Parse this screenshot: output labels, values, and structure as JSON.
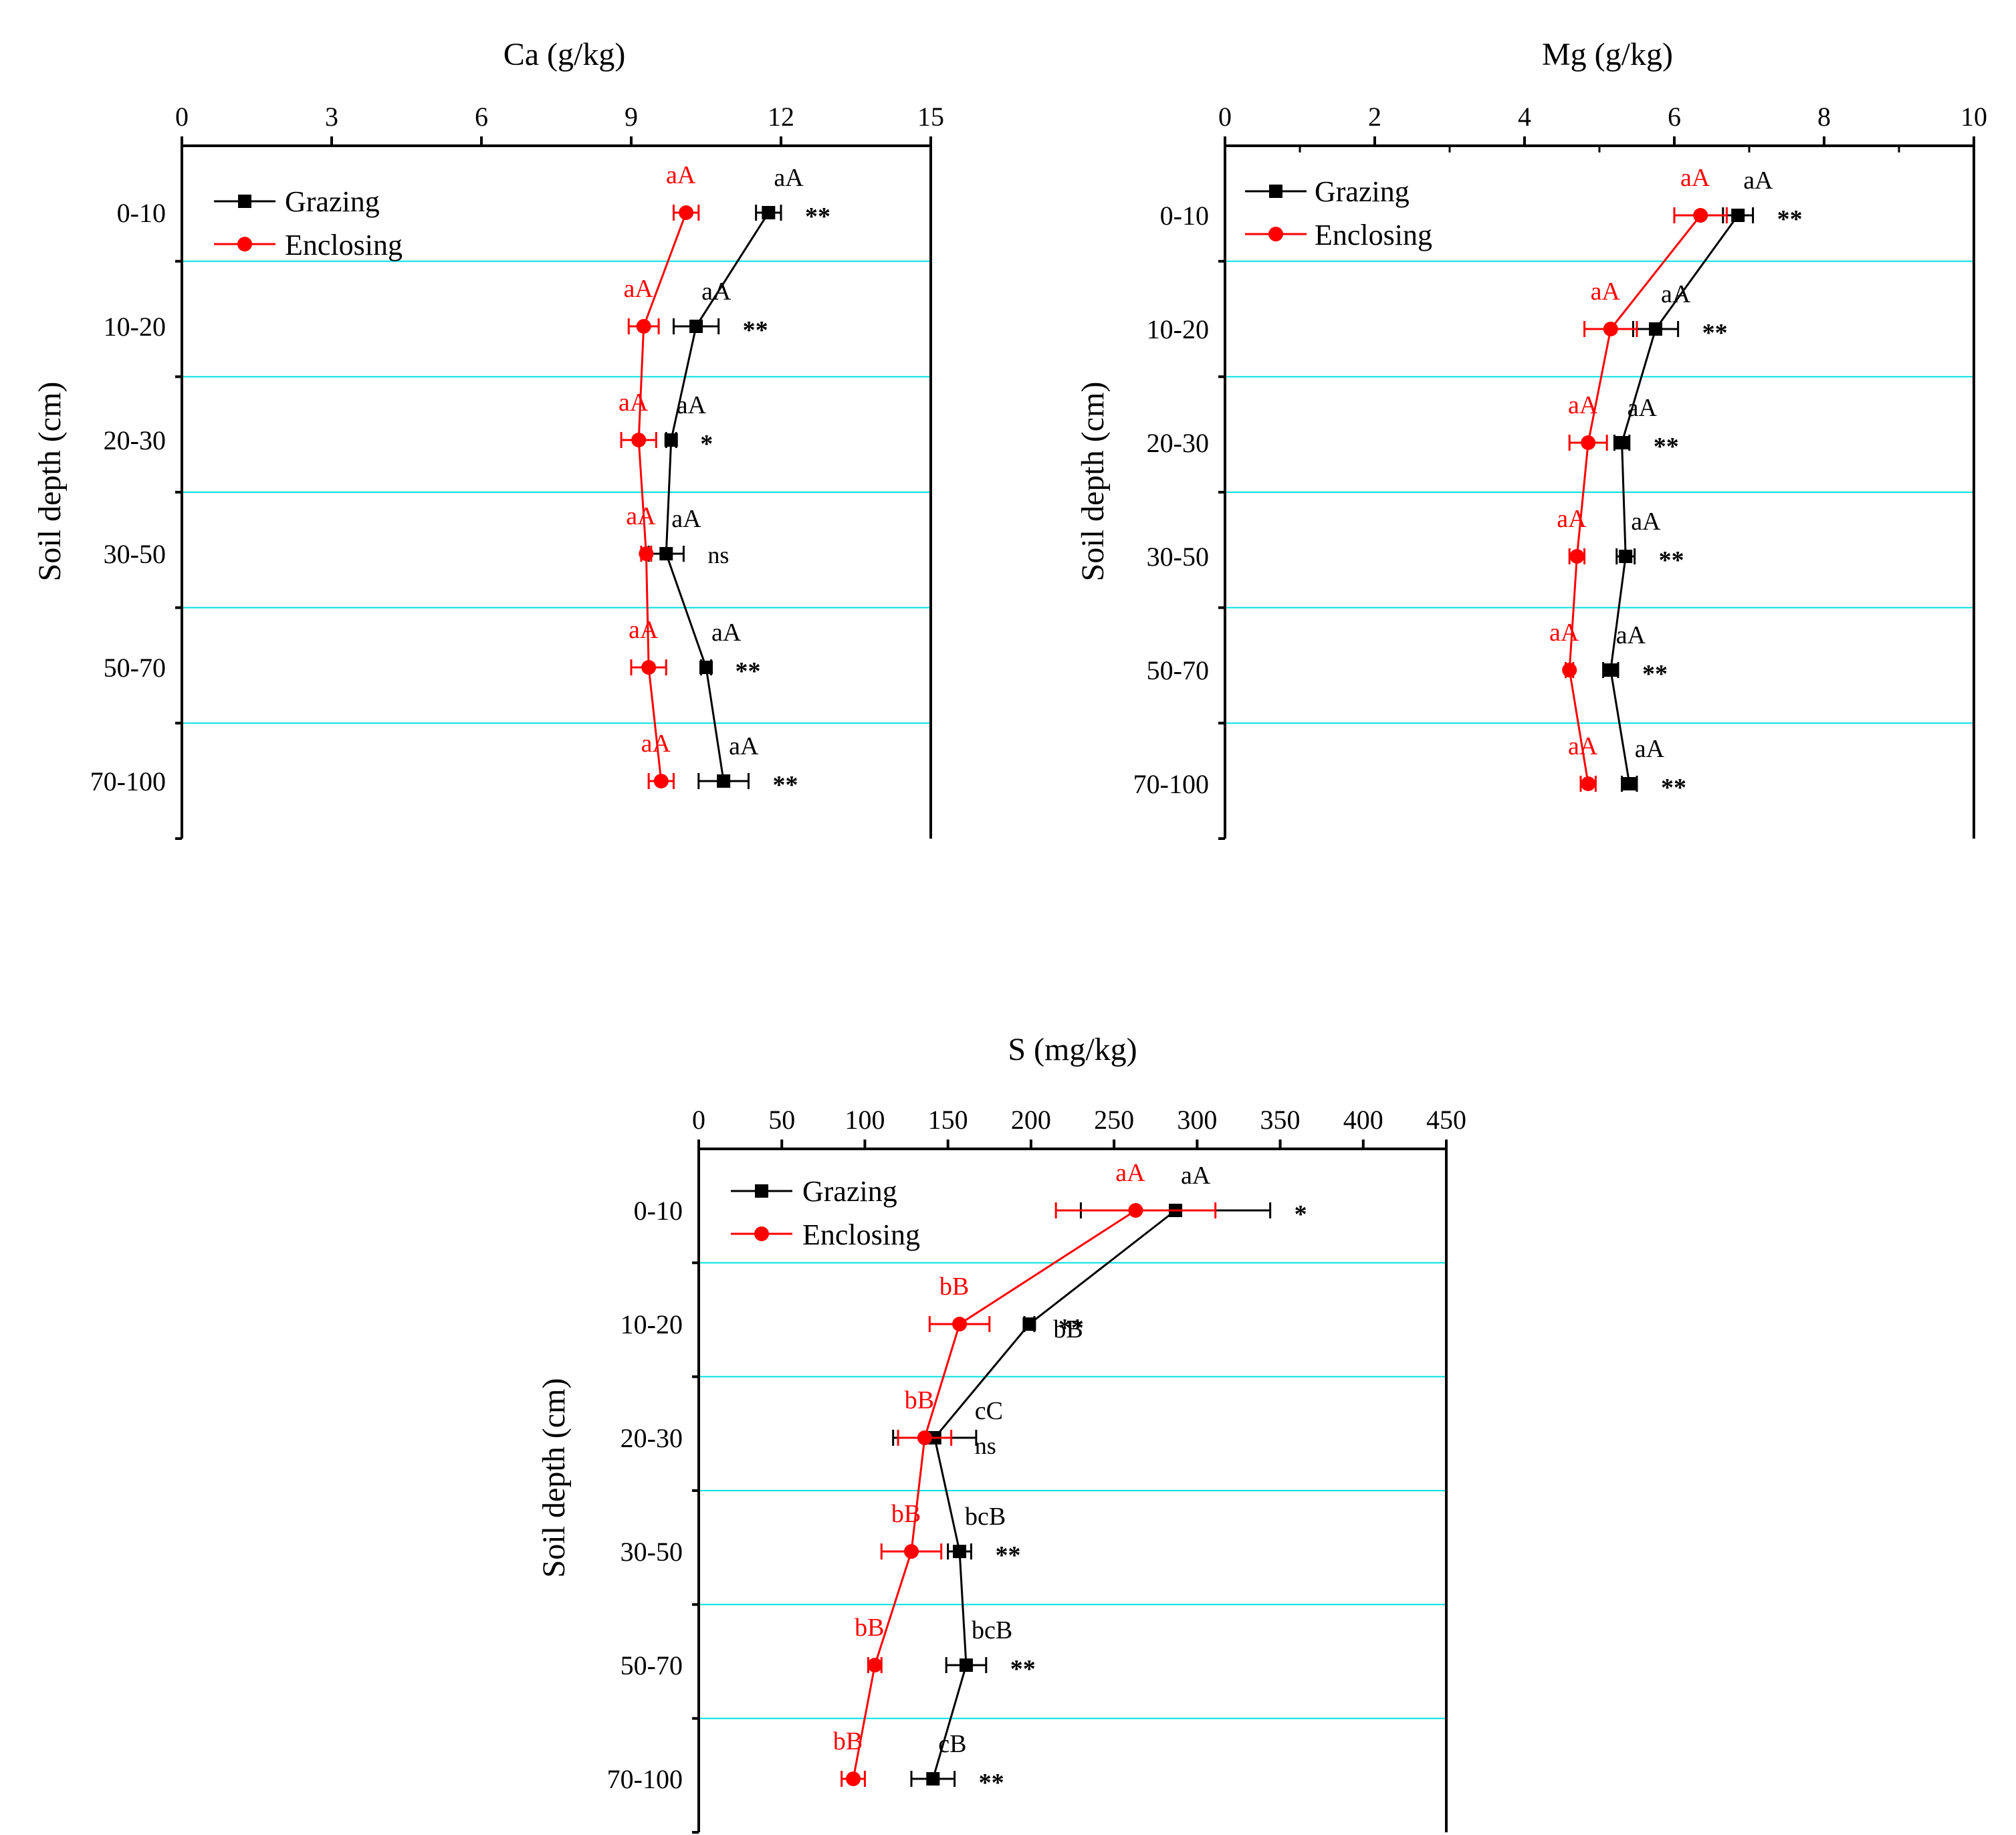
{
  "colors": {
    "grazing": "#000000",
    "enclosing": "#ff0000",
    "gridline": "#00e0e0",
    "axis": "#000000"
  },
  "chart_data": [
    {
      "type": "line",
      "id": "ca",
      "title": "Ca (g/kg)",
      "xlabel": "Ca (g/kg)",
      "ylabel": "Soil depth (cm)",
      "xlim": [
        0,
        15
      ],
      "xticks": [
        0,
        3,
        6,
        9,
        12,
        15
      ],
      "xtick_labels": [
        "0",
        "3",
        "6",
        "9",
        "12",
        "15"
      ],
      "minor_ticks": false,
      "categories": [
        "0-10",
        "10-20",
        "20-30",
        "30-50",
        "50-70",
        "70-100"
      ],
      "legend": {
        "position": "top-left",
        "entries": [
          "Grazing",
          "Enclosing"
        ]
      },
      "series": [
        {
          "name": "Grazing",
          "marker": "square",
          "values": [
            11.75,
            10.3,
            9.8,
            9.7,
            10.5,
            10.85
          ],
          "errors": [
            0.25,
            0.45,
            0.1,
            0.35,
            0.1,
            0.5
          ],
          "letters": [
            "aA",
            "aA",
            "aA",
            "aA",
            "aA",
            "aA"
          ]
        },
        {
          "name": "Enclosing",
          "marker": "circle",
          "values": [
            10.1,
            9.25,
            9.15,
            9.3,
            9.35,
            9.6
          ],
          "errors": [
            0.25,
            0.3,
            0.35,
            0.1,
            0.35,
            0.25
          ],
          "letters": [
            "aA",
            "aA",
            "aA",
            "aA",
            "aA",
            "aA"
          ]
        }
      ],
      "significance": [
        "**",
        "**",
        "*",
        "ns",
        "**",
        "**"
      ]
    },
    {
      "type": "line",
      "id": "mg",
      "title": "Mg (g/kg)",
      "xlabel": "Mg (g/kg)",
      "ylabel": "Soil depth (cm)",
      "xlim": [
        0,
        10
      ],
      "xticks": [
        0,
        2,
        4,
        6,
        8,
        10
      ],
      "xtick_labels": [
        "0",
        "2",
        "4",
        "6",
        "8",
        "10"
      ],
      "minor_ticks": true,
      "categories": [
        "0-10",
        "10-20",
        "20-30",
        "30-50",
        "50-70",
        "70-100"
      ],
      "legend": {
        "position": "top-left",
        "entries": [
          "Grazing",
          "Enclosing"
        ]
      },
      "series": [
        {
          "name": "Grazing",
          "marker": "square",
          "values": [
            6.85,
            5.75,
            5.3,
            5.35,
            5.15,
            5.4
          ],
          "errors": [
            0.2,
            0.3,
            0.1,
            0.12,
            0.1,
            0.1
          ],
          "letters": [
            "aA",
            "aA",
            "aA",
            "aA",
            "aA",
            "aA"
          ]
        },
        {
          "name": "Enclosing",
          "marker": "circle",
          "values": [
            6.35,
            5.15,
            4.85,
            4.7,
            4.6,
            4.85
          ],
          "errors": [
            0.35,
            0.35,
            0.25,
            0.1,
            0.05,
            0.1
          ],
          "letters": [
            "aA",
            "aA",
            "aA",
            "aA",
            "aA",
            "aA"
          ]
        }
      ],
      "significance": [
        "**",
        "**",
        "**",
        "**",
        "**",
        "**"
      ]
    },
    {
      "type": "line",
      "id": "s",
      "title": "S (mg/kg)",
      "xlabel": "S (mg/kg)",
      "ylabel": "Soil depth (cm)",
      "xlim": [
        0,
        450
      ],
      "xticks": [
        0,
        50,
        100,
        150,
        200,
        250,
        300,
        350,
        400,
        450
      ],
      "xtick_labels": [
        "0",
        "50",
        "100",
        "150",
        "200",
        "250",
        "300",
        "350",
        "400",
        "450"
      ],
      "minor_ticks": false,
      "categories": [
        "0-10",
        "10-20",
        "20-30",
        "30-50",
        "50-70",
        "70-100"
      ],
      "legend": {
        "position": "top-left",
        "entries": [
          "Grazing",
          "Enclosing"
        ]
      },
      "series": [
        {
          "name": "Grazing",
          "marker": "square",
          "values": [
            287,
            199,
            142,
            157,
            161,
            141
          ],
          "errors": [
            57,
            3,
            25,
            7,
            12,
            13
          ],
          "letters": [
            "aA",
            "bB",
            "cC",
            "bcB",
            "bcB",
            "cB"
          ]
        },
        {
          "name": "Enclosing",
          "marker": "circle",
          "values": [
            263,
            157,
            136,
            128,
            106,
            93
          ],
          "errors": [
            48,
            18,
            16,
            18,
            4,
            7
          ],
          "letters": [
            "aA",
            "bB",
            "bB",
            "bB",
            "bB",
            "bB"
          ]
        }
      ],
      "significance": [
        "*",
        "**",
        "ns",
        "**",
        "**",
        "**"
      ]
    }
  ]
}
